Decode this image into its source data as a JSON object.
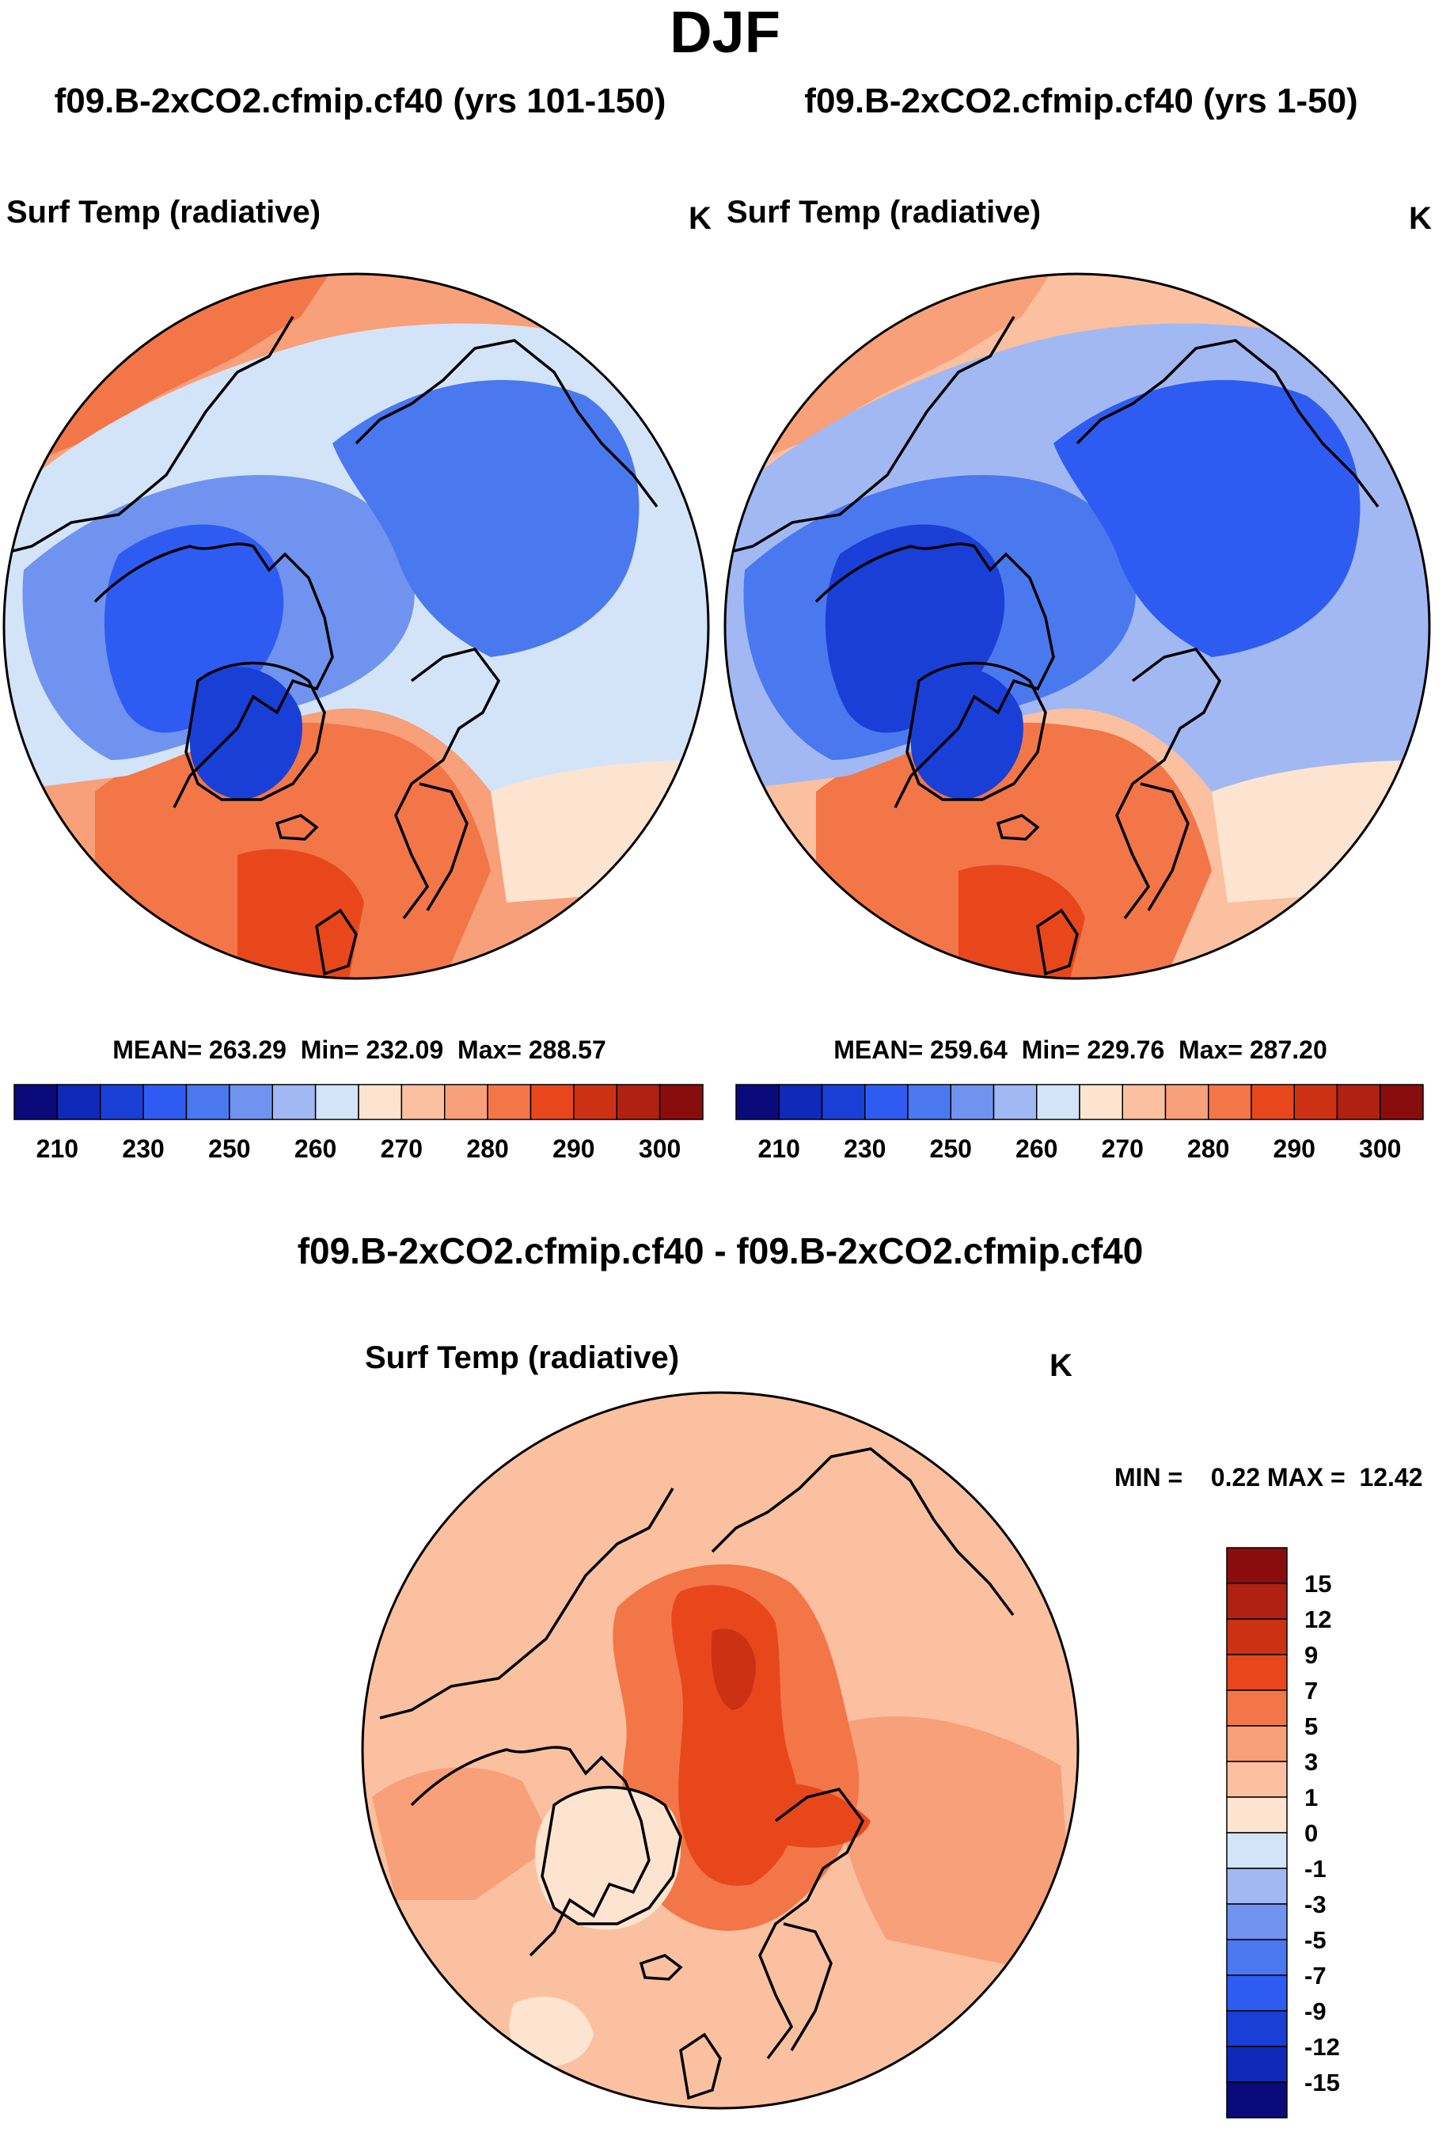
{
  "page_title": "DJF",
  "colors": {
    "abs_levels": [
      "#0a0a7a",
      "#0f2ab8",
      "#1a3fd6",
      "#2e5cf2",
      "#4a78ee",
      "#6f93ee",
      "#a2b8f2",
      "#d4e4f8",
      "#fde4d0",
      "#fbc0a0",
      "#f7a079",
      "#f27648",
      "#e8471c",
      "#cc3114",
      "#b02112",
      "#8a0d0d"
    ],
    "diff_levels": [
      "#0a0a7a",
      "#0f2ab8",
      "#1a3fd6",
      "#2e5cf2",
      "#4a78ee",
      "#6f93ee",
      "#a2b8f2",
      "#d4e4f8",
      "#fde4d0",
      "#fbc0a0",
      "#f7a079",
      "#f27648",
      "#e8471c",
      "#cc3114",
      "#b02112",
      "#8a0d0d"
    ],
    "coast": "#000000"
  },
  "chart_data": [
    {
      "type": "heatmap",
      "projection": "north-polar-stereographic",
      "title": "f09.B-2xCO2.cfmip.cf40 (yrs 101-150)",
      "variable": "Surf Temp (radiative)",
      "units": "K",
      "stats": {
        "mean": 263.29,
        "min": 232.09,
        "max": 288.57
      },
      "stats_text": "MEAN= 263.29  Min= 232.09  Max= 288.57",
      "colorbar": {
        "levels": [
          205,
          210,
          220,
          230,
          240,
          250,
          255,
          260,
          265,
          270,
          275,
          280,
          285,
          290,
          295,
          300
        ],
        "tick_labels": [
          "210",
          "230",
          "250",
          "260",
          "270",
          "280",
          "290",
          "300"
        ],
        "orientation": "horizontal"
      }
    },
    {
      "type": "heatmap",
      "projection": "north-polar-stereographic",
      "title": "f09.B-2xCO2.cfmip.cf40 (yrs 1-50)",
      "variable": "Surf Temp (radiative)",
      "units": "K",
      "stats": {
        "mean": 259.64,
        "min": 229.76,
        "max": 287.2
      },
      "stats_text": "MEAN= 259.64  Min= 229.76  Max= 287.20",
      "colorbar": {
        "levels": [
          205,
          210,
          220,
          230,
          240,
          250,
          255,
          260,
          265,
          270,
          275,
          280,
          285,
          290,
          295,
          300
        ],
        "tick_labels": [
          "210",
          "230",
          "250",
          "260",
          "270",
          "280",
          "290",
          "300"
        ],
        "orientation": "horizontal"
      }
    },
    {
      "type": "heatmap",
      "projection": "north-polar-stereographic",
      "title": "f09.B-2xCO2.cfmip.cf40 - f09.B-2xCO2.cfmip.cf40",
      "variable": "Surf Temp (radiative)",
      "units": "K",
      "stats": {
        "min": 0.22,
        "max": 12.42
      },
      "stats_text": "MIN =    0.22 MAX =  12.42",
      "colorbar": {
        "levels": [
          -15,
          -12,
          -9,
          -7,
          -5,
          -3,
          -1,
          0,
          1,
          3,
          5,
          7,
          9,
          12,
          15
        ],
        "tick_labels": [
          "15",
          "12",
          "9",
          "7",
          "5",
          "3",
          "1",
          "0",
          "-1",
          "-3",
          "-5",
          "-7",
          "-9",
          "-12",
          "-15"
        ],
        "orientation": "vertical"
      }
    }
  ]
}
